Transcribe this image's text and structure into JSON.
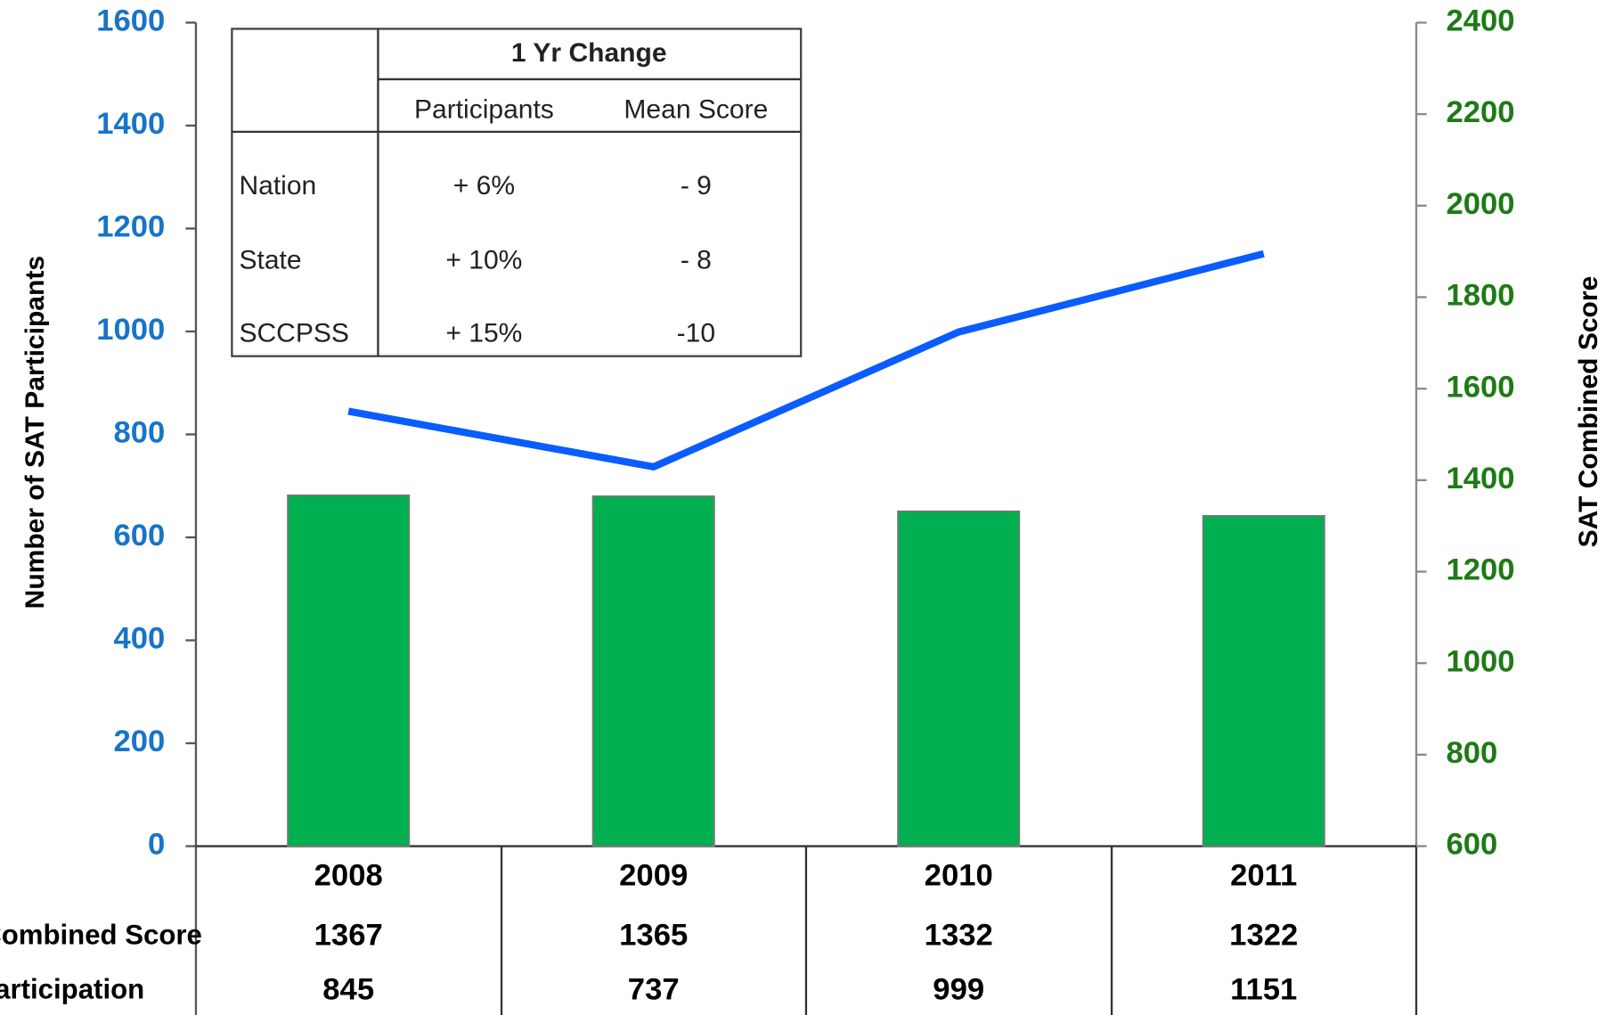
{
  "chart_data": {
    "type": "bar_line",
    "categories": [
      "2008",
      "2009",
      "2010",
      "2011"
    ],
    "ylabel": "Number of SAT Participants",
    "y2label": "SAT Combined Score",
    "ylim": [
      0,
      1600
    ],
    "yticks": [
      0,
      200,
      400,
      600,
      800,
      1000,
      1200,
      1400,
      1600
    ],
    "y2lim": [
      600,
      2400
    ],
    "y2ticks": [
      600,
      800,
      1000,
      1200,
      1400,
      1600,
      1800,
      2000,
      2200,
      2400
    ],
    "series": [
      {
        "name": "Combined Score",
        "type": "bar",
        "axis": "y2",
        "color": "#00b050",
        "values": [
          1367,
          1365,
          1332,
          1322
        ]
      },
      {
        "name": "Participation",
        "type": "line",
        "axis": "y",
        "color": "#0a5cff",
        "values": [
          845,
          737,
          999,
          1151
        ]
      }
    ],
    "ytick_color": "#1874c8",
    "y2tick_color": "#1e7a16"
  },
  "inset_table": {
    "title": "1 Yr Change",
    "columns": [
      "Participants",
      "Mean Score"
    ],
    "rows": [
      [
        "Nation",
        "+ 6%",
        "- 9"
      ],
      [
        "State",
        "+ 10%",
        "- 8"
      ],
      [
        "SCCPSS",
        "+ 15%",
        "-10"
      ]
    ]
  }
}
